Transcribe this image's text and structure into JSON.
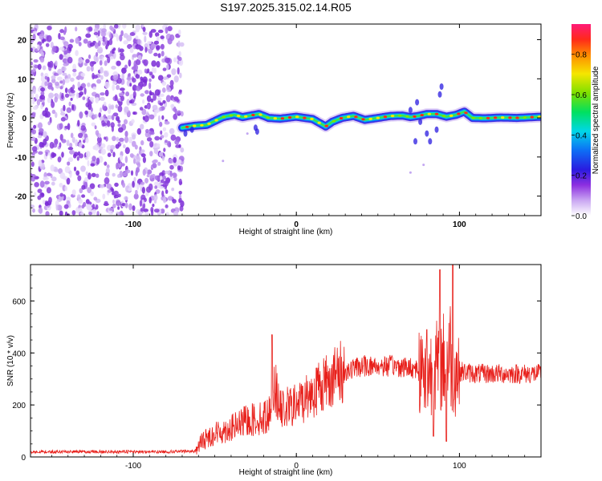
{
  "title": "S197.2025.315.02.14.R05",
  "chart_data": [
    {
      "type": "heatmap",
      "name": "spectrogram",
      "xlabel": "Height of straight line (km)",
      "ylabel": "Frequency (Hz)",
      "xlim": [
        -163,
        150
      ],
      "ylim": [
        -25,
        24
      ],
      "xticks": [
        -100,
        0,
        100
      ],
      "xtick_labels": [
        "-100",
        "0",
        "100"
      ],
      "yticks": [
        -20,
        -10,
        0,
        10,
        20
      ],
      "ytick_labels": [
        "-20",
        "-10",
        "0",
        "10",
        "20"
      ],
      "noise_region_x": [
        -163,
        -70
      ],
      "ridge": {
        "x": [
          -70,
          -62,
          -55,
          -45,
          -38,
          -33,
          -28,
          -23,
          -17,
          -10,
          0,
          10,
          18,
          22,
          28,
          35,
          42,
          50,
          58,
          65,
          70,
          75,
          80,
          86,
          92,
          98,
          103,
          108,
          115,
          125,
          135,
          145,
          150
        ],
        "frequency": [
          -2.5,
          -2.0,
          -1.8,
          0.2,
          0.8,
          0.2,
          0.6,
          1.0,
          0.0,
          -0.2,
          0.3,
          -0.3,
          -2.2,
          -1.0,
          0.0,
          0.5,
          -0.5,
          0.0,
          0.5,
          0.6,
          0.2,
          0.5,
          1.0,
          1.0,
          0.3,
          0.8,
          1.6,
          0.0,
          -0.1,
          0.1,
          0.0,
          0.2,
          0.3
        ]
      },
      "colorbar": {
        "label": "Normalized spectral amplitude",
        "range": [
          0.0,
          0.95
        ],
        "ticks": [
          0.0,
          0.2,
          0.4,
          0.6,
          0.8
        ],
        "tick_labels": [
          "0.0",
          "0.2",
          "0.4",
          "0.6",
          "0.8"
        ]
      }
    },
    {
      "type": "line",
      "name": "snr",
      "xlabel": "Height of straight line (km)",
      "ylabel": "SNR (10 * v/v)",
      "xlim": [
        -163,
        150
      ],
      "ylim": [
        0,
        740
      ],
      "xticks": [
        -100,
        0,
        100
      ],
      "xtick_labels": [
        "-100",
        "0",
        "100"
      ],
      "yticks": [
        0,
        200,
        400,
        600
      ],
      "ytick_labels": [
        "0",
        "200",
        "400",
        "600"
      ],
      "color": "#e8201b",
      "envelope": {
        "x": [
          -163,
          -80,
          -62,
          -58,
          -50,
          -40,
          -30,
          -20,
          -16,
          -14,
          -10,
          0,
          10,
          20,
          30,
          40,
          60,
          75,
          78,
          82,
          88,
          92,
          94,
          96,
          98,
          100,
          110,
          130,
          150
        ],
        "snr": [
          20,
          20,
          22,
          60,
          90,
          110,
          140,
          150,
          170,
          300,
          180,
          200,
          250,
          300,
          330,
          350,
          350,
          340,
          330,
          330,
          350,
          380,
          420,
          330,
          340,
          330,
          320,
          320,
          320
        ]
      },
      "spikes": [
        {
          "x": -15,
          "snr": 470
        },
        {
          "x": 80,
          "snr": 490
        },
        {
          "x": 88,
          "snr": 720
        },
        {
          "x": 96,
          "snr": 740
        },
        {
          "x": 92,
          "snr": 60
        },
        {
          "x": 84,
          "snr": 80
        }
      ]
    }
  ]
}
